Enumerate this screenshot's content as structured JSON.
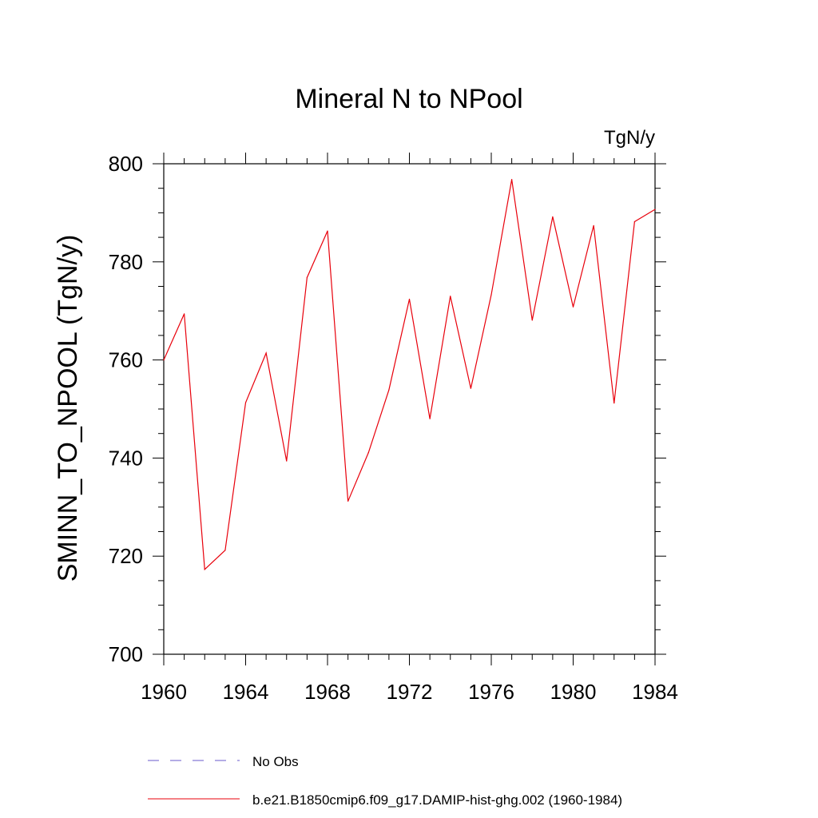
{
  "chart_data": {
    "type": "line",
    "title": "Mineral N to NPool",
    "units_label": "TgN/y",
    "ylabel": "SMINN_TO_NPOOL  (TgN/y)",
    "xlabel": "",
    "xlim": [
      1960,
      1984
    ],
    "ylim": [
      700,
      800
    ],
    "x_ticks": [
      1960,
      1964,
      1968,
      1972,
      1976,
      1980,
      1984
    ],
    "x_tick_labels": [
      "1960",
      "1964",
      "1968",
      "1972",
      "1976",
      "1980",
      "1984"
    ],
    "y_ticks": [
      700,
      720,
      740,
      760,
      780,
      800
    ],
    "y_tick_labels": [
      "700",
      "720",
      "740",
      "760",
      "780",
      "800"
    ],
    "grid": false,
    "legend_position": "bottom",
    "series": [
      {
        "name": "b.e21.B1850cmip6.f09_g17.DAMIP-hist-ghg.002 (1960-1984)",
        "color": "#e8000b",
        "style": "solid",
        "x": [
          1960,
          1961,
          1962,
          1963,
          1964,
          1965,
          1966,
          1967,
          1968,
          1969,
          1970,
          1971,
          1972,
          1973,
          1974,
          1975,
          1976,
          1977,
          1978,
          1979,
          1980,
          1981,
          1982,
          1983,
          1984
        ],
        "y": [
          760.0,
          769.4,
          717.3,
          721.2,
          751.3,
          761.4,
          739.4,
          776.8,
          786.3,
          731.2,
          741.1,
          753.9,
          772.4,
          748.0,
          773.0,
          754.2,
          773.3,
          796.8,
          768.1,
          789.2,
          770.8,
          787.4,
          751.2,
          788.2,
          790.7
        ]
      },
      {
        "name": "No Obs",
        "color": "#6a5acd",
        "style": "dashed",
        "x": [],
        "y": []
      }
    ],
    "legend": [
      {
        "label": "No Obs",
        "color": "#6a5acd",
        "style": "dashed"
      },
      {
        "label": "b.e21.B1850cmip6.f09_g17.DAMIP-hist-ghg.002 (1960-1984)",
        "color": "#e8000b",
        "style": "solid"
      }
    ]
  }
}
